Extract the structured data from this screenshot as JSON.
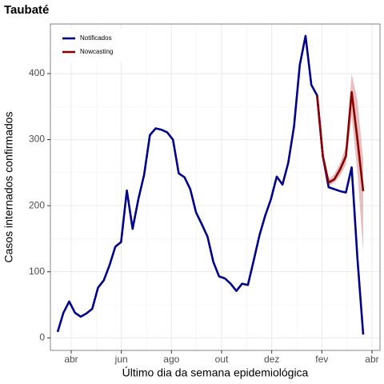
{
  "chart_data": {
    "type": "line",
    "title": "Taubaté",
    "xlabel": "Último dia da semana epidemiológica",
    "ylabel": "Casos internados confirmados",
    "x": [
      3.46,
      3.69,
      3.92,
      4.15,
      4.38,
      4.61,
      4.84,
      5.07,
      5.3,
      5.53,
      5.76,
      5.99,
      6.22,
      6.45,
      6.68,
      6.91,
      7.14,
      7.37,
      7.6,
      7.83,
      8.06,
      8.29,
      8.52,
      8.75,
      8.98,
      9.21,
      9.44,
      9.67,
      9.9,
      10.13,
      10.36,
      10.59,
      10.82,
      11.05,
      11.28,
      11.51,
      11.74,
      11.97,
      12.2,
      12.43,
      12.66,
      12.89,
      13.12,
      13.35,
      13.58,
      13.81,
      14.04,
      14.27,
      14.5,
      14.73,
      14.96,
      15.19,
      15.42,
      15.65
    ],
    "series": [
      {
        "name": "Notificados",
        "color": "#00008b",
        "values": [
          9,
          38,
          55,
          38,
          32,
          37,
          44,
          76,
          87,
          110,
          138,
          145,
          223,
          165,
          210,
          247,
          307,
          317,
          315,
          311,
          300,
          249,
          243,
          225,
          190,
          172,
          153,
          115,
          93,
          90,
          82,
          71,
          82,
          80,
          117,
          155,
          185,
          210,
          244,
          232,
          265,
          320,
          413,
          457,
          383,
          367,
          275,
          228,
          225,
          222,
          220,
          258,
          120,
          5
        ]
      },
      {
        "name": "Nowcasting",
        "color": "#8b0000",
        "band_color": "#d48a8a",
        "values": [
          null,
          null,
          null,
          null,
          null,
          null,
          null,
          null,
          null,
          null,
          null,
          null,
          null,
          null,
          null,
          null,
          null,
          null,
          null,
          null,
          null,
          null,
          null,
          null,
          null,
          null,
          null,
          null,
          null,
          null,
          null,
          null,
          null,
          null,
          null,
          null,
          null,
          null,
          null,
          null,
          null,
          null,
          null,
          null,
          null,
          367,
          275,
          235,
          240,
          255,
          275,
          372,
          300,
          222
        ],
        "lower": [
          null,
          null,
          null,
          null,
          null,
          null,
          null,
          null,
          null,
          null,
          null,
          null,
          null,
          null,
          null,
          null,
          null,
          null,
          null,
          null,
          null,
          null,
          null,
          null,
          null,
          null,
          null,
          null,
          null,
          null,
          null,
          null,
          null,
          null,
          null,
          null,
          null,
          null,
          null,
          null,
          null,
          null,
          null,
          null,
          null,
          367,
          275,
          230,
          235,
          245,
          262,
          335,
          250,
          130
        ],
        "upper": [
          null,
          null,
          null,
          null,
          null,
          null,
          null,
          null,
          null,
          null,
          null,
          null,
          null,
          null,
          null,
          null,
          null,
          null,
          null,
          null,
          null,
          null,
          null,
          null,
          null,
          null,
          null,
          null,
          null,
          null,
          null,
          null,
          null,
          null,
          null,
          null,
          null,
          null,
          null,
          null,
          null,
          null,
          null,
          null,
          null,
          367,
          278,
          240,
          248,
          265,
          290,
          400,
          360,
          270
        ]
      }
    ],
    "xlim": [
      3.17,
      16.32
    ],
    "xticks": [
      {
        "value": 4,
        "label": "abr"
      },
      {
        "value": 6,
        "label": "jun"
      },
      {
        "value": 8,
        "label": "ago"
      },
      {
        "value": 10,
        "label": "out"
      },
      {
        "value": 12,
        "label": "dez"
      },
      {
        "value": 14,
        "label": "fev"
      },
      {
        "value": 16,
        "label": "abr"
      }
    ],
    "ylim": [
      -19,
      475
    ],
    "yticks": [
      0,
      100,
      200,
      300,
      400
    ],
    "grid": true,
    "legend": "top-left"
  }
}
